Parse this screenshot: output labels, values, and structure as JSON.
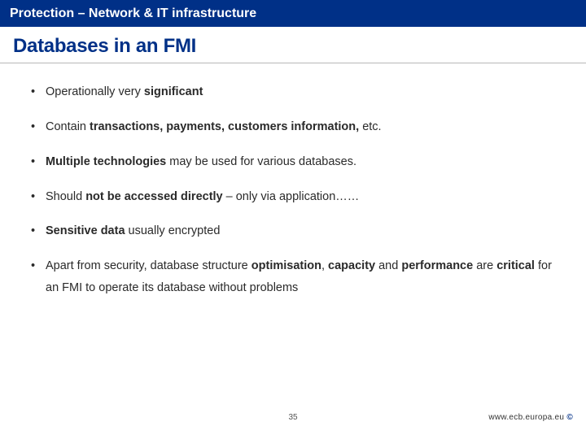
{
  "header": {
    "title": "Protection – Network & IT infrastructure"
  },
  "slide": {
    "title": "Databases in an FMI"
  },
  "bullets": [
    {
      "pre": "Operationally very ",
      "bold1": "significant",
      "post": ""
    },
    {
      "pre": "Contain ",
      "bold1": "transactions, payments, customers information,",
      "post": " etc."
    },
    {
      "bold1": "Multiple technologies",
      "mid": " may be used for various databases.",
      "post": ""
    },
    {
      "pre": "Should ",
      "bold1": "not be accessed directly",
      "post": " – only via application……"
    },
    {
      "bold1": "Sensitive data",
      "mid": " usually encrypted",
      "post": ""
    },
    {
      "pre": "Apart from security, database structure ",
      "bold1": "optimisation",
      "mid": ", ",
      "bold2": "capacity",
      "mid2": " and ",
      "bold3": "performance",
      "mid3": " are ",
      "bold4": "critical",
      "post": " for an FMI to operate its database without problems"
    }
  ],
  "footer": {
    "page": "35",
    "url": "www.ecb.europa.eu",
    "copy": " © "
  },
  "colors": {
    "brand": "#003087",
    "text": "#2a2a2a",
    "rule": "#b8b8b8",
    "bg": "#ffffff"
  }
}
